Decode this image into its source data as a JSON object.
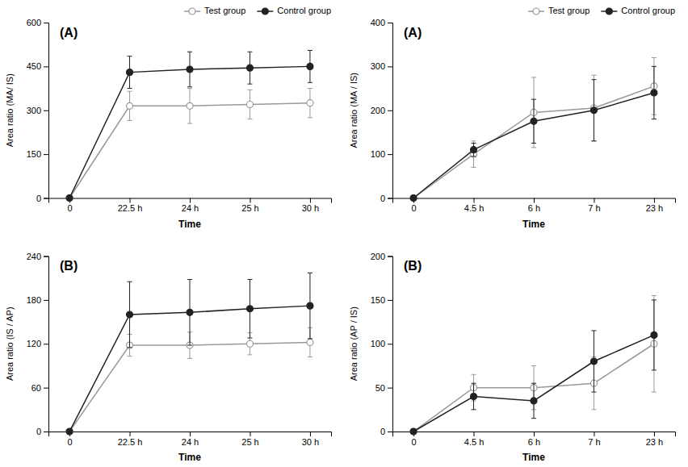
{
  "chart_data": [
    {
      "type": "line",
      "title": "(A)",
      "categories": [
        "0",
        "22.5 h",
        "24 h",
        "25 h",
        "30 h"
      ],
      "xlabel": "Time",
      "ylabel": "Area ratio (MA/ IS)",
      "ylim": [
        0,
        600
      ],
      "yticks": [
        0,
        150,
        300,
        450,
        600
      ],
      "grid": false,
      "legend": "upper right",
      "series": [
        {
          "name": "Test group",
          "color": "#999999",
          "marker": "open-circle",
          "line_style": "solid",
          "values": [
            0,
            315,
            315,
            320,
            325
          ],
          "errors": [
            0,
            50,
            60,
            50,
            50
          ]
        },
        {
          "name": "Control group",
          "color": "#222222",
          "marker": "circle",
          "line_style": "solid",
          "values": [
            0,
            430,
            440,
            445,
            450
          ],
          "errors": [
            0,
            55,
            60,
            55,
            55
          ]
        }
      ]
    },
    {
      "type": "line",
      "title": "(A)",
      "categories": [
        "0",
        "4.5 h",
        "6 h",
        "7 h",
        "23 h"
      ],
      "xlabel": "Time",
      "ylabel": "Area ratio (MA / IS)",
      "ylim": [
        0,
        400
      ],
      "yticks": [
        0,
        100,
        200,
        300,
        400
      ],
      "grid": false,
      "legend": "upper right",
      "series": [
        {
          "name": "Test group",
          "color": "#999999",
          "marker": "open-circle",
          "line_style": "solid",
          "values": [
            0,
            100,
            195,
            205,
            255
          ],
          "errors": [
            0,
            30,
            80,
            75,
            65
          ]
        },
        {
          "name": "Control group",
          "color": "#222222",
          "marker": "circle",
          "line_style": "solid",
          "values": [
            0,
            110,
            175,
            200,
            240
          ],
          "errors": [
            0,
            15,
            50,
            70,
            60
          ]
        }
      ]
    },
    {
      "type": "line",
      "title": "(B)",
      "categories": [
        "0",
        "22.5 h",
        "24 h",
        "25 h",
        "30 h"
      ],
      "xlabel": "Time",
      "ylabel": "Area ratio (IS / AP)",
      "ylim": [
        0,
        240
      ],
      "yticks": [
        0,
        60,
        120,
        180,
        240
      ],
      "grid": false,
      "series": [
        {
          "name": "Test group",
          "color": "#999999",
          "marker": "open-circle",
          "line_style": "solid",
          "values": [
            0,
            118,
            118,
            120,
            122
          ],
          "errors": [
            0,
            15,
            18,
            15,
            20
          ]
        },
        {
          "name": "Control group",
          "color": "#222222",
          "marker": "circle",
          "line_style": "solid",
          "values": [
            0,
            160,
            163,
            168,
            172
          ],
          "errors": [
            0,
            45,
            45,
            40,
            45
          ]
        }
      ]
    },
    {
      "type": "line",
      "title": "(B)",
      "categories": [
        "0",
        "4.5 h",
        "6 h",
        "7 h",
        "23 h"
      ],
      "xlabel": "Time",
      "ylabel": "Area ratio (AP / IS)",
      "ylim": [
        0,
        200
      ],
      "yticks": [
        0,
        50,
        100,
        150,
        200
      ],
      "grid": false,
      "series": [
        {
          "name": "Test group",
          "color": "#999999",
          "marker": "open-circle",
          "line_style": "solid",
          "values": [
            0,
            50,
            50,
            55,
            100
          ],
          "errors": [
            0,
            15,
            25,
            30,
            55
          ]
        },
        {
          "name": "Control group",
          "color": "#222222",
          "marker": "circle",
          "line_style": "solid",
          "values": [
            0,
            40,
            35,
            80,
            110
          ],
          "errors": [
            0,
            15,
            20,
            35,
            40
          ]
        }
      ]
    }
  ]
}
